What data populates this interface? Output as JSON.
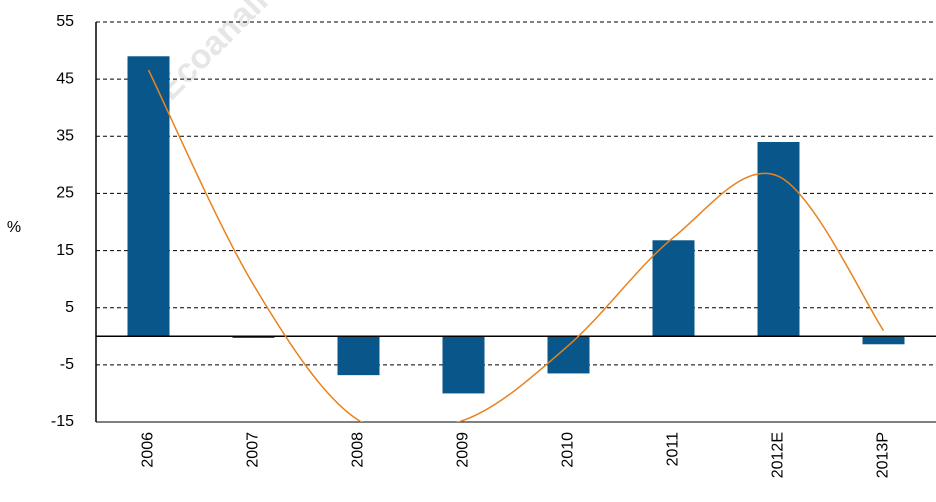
{
  "chart_data": {
    "type": "bar",
    "watermark": "© Ecoanalitica – Do",
    "ylabel": "%",
    "categories": [
      "2006",
      "2007",
      "2008",
      "2009",
      "2010",
      "2011",
      "2012E",
      "2013P"
    ],
    "values": [
      49,
      -0.3,
      -6.8,
      -10,
      -6.5,
      16.8,
      34,
      -1.4
    ],
    "color": "#08568a",
    "trendline": {
      "color": "#e8821e",
      "values": [
        46.6,
        9,
        -14.7,
        -14.7,
        -1.6,
        17.3,
        28,
        1
      ]
    },
    "ylim": [
      -15,
      55
    ],
    "yticks": [
      -15,
      -5,
      5,
      15,
      25,
      35,
      45,
      55
    ],
    "grid": true
  }
}
